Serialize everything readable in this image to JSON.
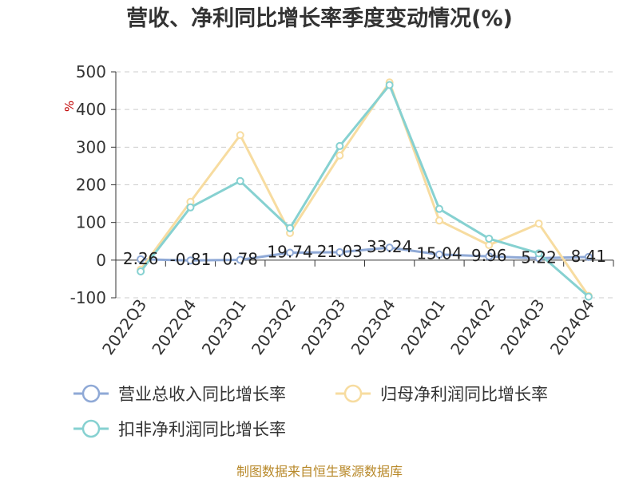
{
  "chart_data": {
    "type": "line",
    "title": "营收、净利同比增长率季度变动情况(%)",
    "ylabel": "%",
    "xlabel": "",
    "categories": [
      "2022Q3",
      "2022Q4",
      "2023Q1",
      "2023Q2",
      "2023Q3",
      "2023Q4",
      "2024Q1",
      "2024Q2",
      "2024Q3",
      "2024Q4"
    ],
    "ylim": [
      -100,
      500
    ],
    "yticks": [
      "500",
      "400",
      "300",
      "200",
      "100",
      "0",
      "-100"
    ],
    "grid": true,
    "legend_position": "bottom",
    "series": [
      {
        "name": "营业总收入同比增长率",
        "color": "#8fa9d6",
        "values": [
          2.26,
          -0.81,
          0.78,
          19.74,
          21.03,
          33.24,
          15.04,
          9.96,
          5.22,
          8.41
        ],
        "labels": [
          "2.26",
          "-0.81",
          "0.78",
          "19.74",
          "21.03",
          "33.24",
          "15.04",
          "9.96",
          "5.22",
          "8.41"
        ]
      },
      {
        "name": "归母净利润同比增长率",
        "color": "#f7dca0",
        "values": [
          -25,
          155,
          332,
          72,
          278,
          472,
          105,
          40,
          97,
          -95
        ]
      },
      {
        "name": "扣非净利润同比增长率",
        "color": "#86d1d1",
        "values": [
          -30,
          140,
          210,
          85,
          303,
          465,
          136,
          57,
          18,
          -97
        ]
      }
    ]
  },
  "source": "制图数据来自恒生聚源数据库"
}
